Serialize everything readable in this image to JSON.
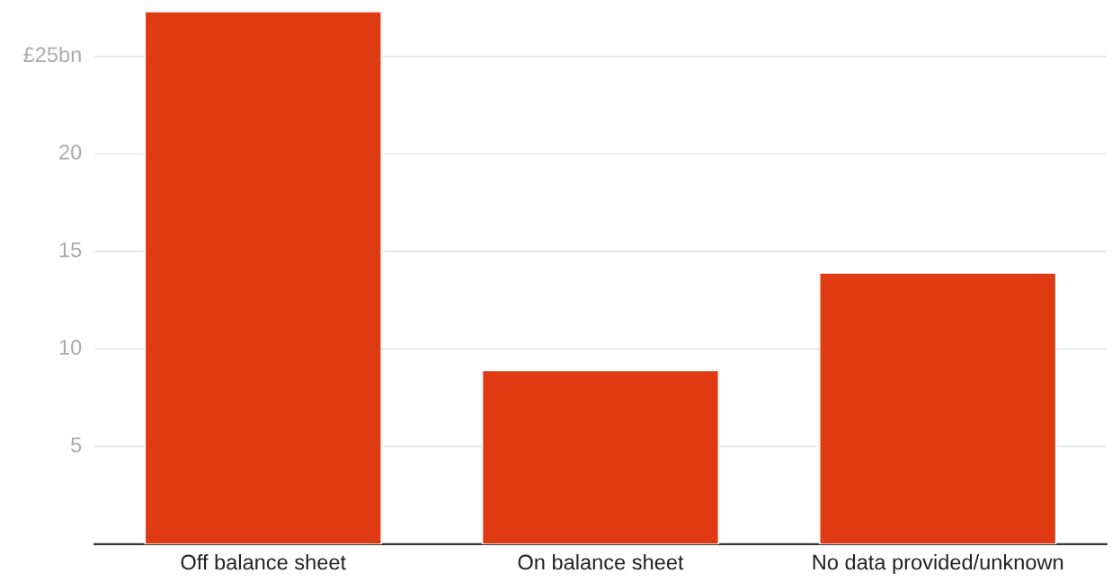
{
  "chart_data": {
    "type": "bar",
    "categories": [
      "Off balance sheet",
      "On balance sheet",
      "No data provided/unknown"
    ],
    "values": [
      27.3,
      8.9,
      13.9
    ],
    "color": "#e03a12",
    "ylim": [
      0,
      27.3
    ],
    "yticks": [
      {
        "value": 5,
        "label": "5"
      },
      {
        "value": 10,
        "label": "10"
      },
      {
        "value": 15,
        "label": "15"
      },
      {
        "value": 20,
        "label": "20"
      },
      {
        "value": 25,
        "label": "£25bn"
      }
    ],
    "grid": "y"
  }
}
